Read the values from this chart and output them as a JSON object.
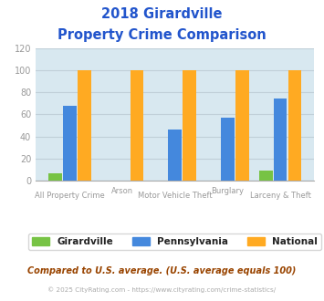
{
  "title_line1": "2018 Girardville",
  "title_line2": "Property Crime Comparison",
  "cat_labels_row1": [
    "All Property Crime",
    "",
    "Motor Vehicle Theft",
    "",
    "Larceny & Theft"
  ],
  "cat_labels_row2": [
    "",
    "Arson",
    "",
    "Burglary",
    ""
  ],
  "girardville": [
    7,
    0,
    0,
    0,
    9
  ],
  "pennsylvania": [
    68,
    0,
    46,
    57,
    74
  ],
  "national": [
    100,
    100,
    100,
    100,
    100
  ],
  "colors_girardville": "#77c344",
  "colors_pennsylvania": "#4488dd",
  "colors_national": "#ffaa22",
  "ylim": [
    0,
    120
  ],
  "yticks": [
    0,
    20,
    40,
    60,
    80,
    100,
    120
  ],
  "legend_labels": [
    "Girardville",
    "Pennsylvania",
    "National"
  ],
  "footer_text1": "Compared to U.S. average. (U.S. average equals 100)",
  "footer_text2": "© 2025 CityRating.com - https://www.cityrating.com/crime-statistics/",
  "bg_color": "#d8e8f0",
  "title_color": "#2255cc",
  "axis_label_color": "#999999",
  "footer1_color": "#994400",
  "footer2_color": "#aaaaaa",
  "legend_text_color": "#222222",
  "grid_color": "#c0cfd8"
}
